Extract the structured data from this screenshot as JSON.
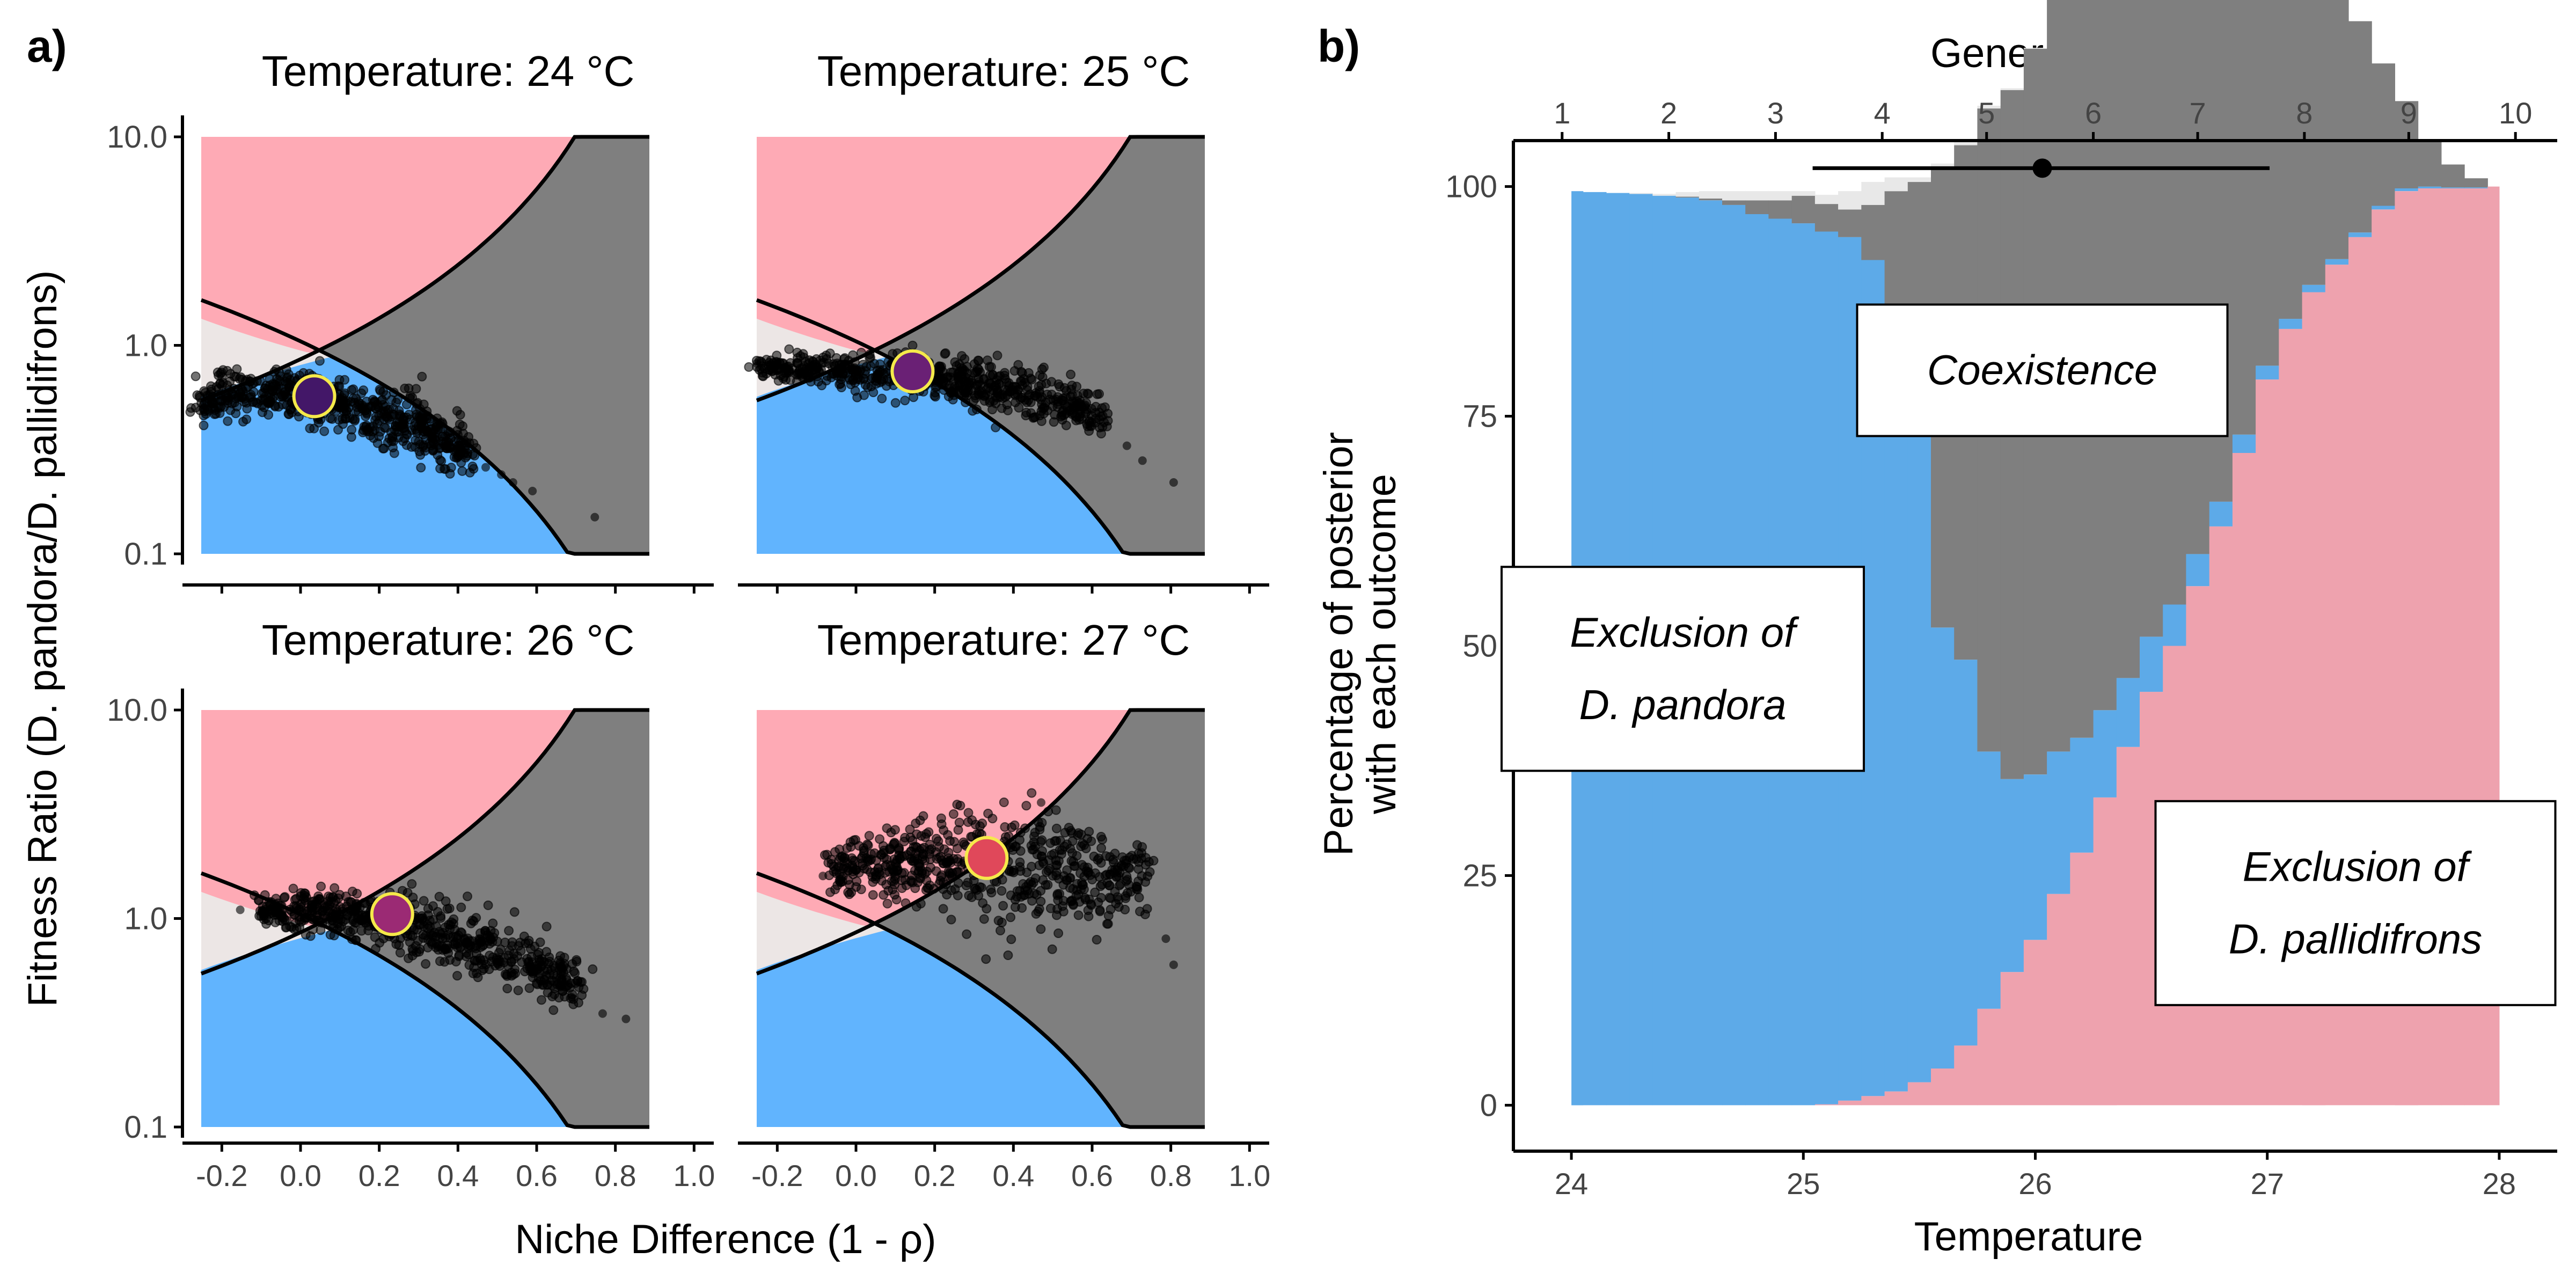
{
  "panel_a": {
    "label": "a)",
    "ylabel": "Fitness Ratio (D. pandora/D. pallidifrons)",
    "xlabel": "Niche Difference (1 - ρ)",
    "colors": {
      "pink": "#feaab5",
      "gray": "#7f7f7f",
      "light": "#ece6e5",
      "blue": "#61b4fe",
      "points": "#000000"
    },
    "xlim": [
      -0.3,
      1.05
    ],
    "xticks": [
      -0.2,
      0.0,
      0.2,
      0.4,
      0.6,
      0.8,
      1.0
    ],
    "xtick_labels": [
      "-0.2",
      "0.0",
      "0.2",
      "0.4",
      "0.6",
      "0.8",
      "1.0"
    ],
    "ylim": [
      0.1,
      10.0
    ],
    "yscale": "log",
    "yticks": [
      0.1,
      1.0,
      10.0
    ],
    "ytick_labels": [
      "0.1",
      "1.0",
      "10.0"
    ],
    "facets": [
      {
        "title": "Temperature: 24 °C",
        "mean": [
          0.04,
          0.57
        ],
        "mean_color": "#431768",
        "cloud": [
          {
            "x": [
              -0.25,
              -0.05,
              0.1,
              0.2,
              0.3,
              0.38,
              0.45
            ],
            "lo": [
              0.45,
              0.46,
              0.38,
              0.33,
              0.28,
              0.25,
              0.24
            ],
            "hi": [
              0.72,
              0.78,
              0.72,
              0.65,
              0.55,
              0.45,
              0.38
            ]
          }
        ],
        "stragglers": [
          [
            0.55,
            0.22
          ],
          [
            0.6,
            0.2
          ],
          [
            0.52,
            0.24
          ],
          [
            0.76,
            0.15
          ],
          [
            0.48,
            0.26
          ]
        ]
      },
      {
        "title": "Temperature: 25 °C",
        "mean": [
          0.15,
          0.75
        ],
        "mean_color": "#6a2075",
        "cloud": [
          {
            "x": [
              -0.25,
              -0.05,
              0.1,
              0.25,
              0.4,
              0.55,
              0.65
            ],
            "lo": [
              0.68,
              0.63,
              0.58,
              0.52,
              0.45,
              0.4,
              0.37
            ],
            "hi": [
              0.92,
              0.95,
              0.92,
              0.88,
              0.8,
              0.66,
              0.55
            ]
          }
        ],
        "stragglers": [
          [
            0.7,
            0.33
          ],
          [
            0.82,
            0.22
          ],
          [
            0.74,
            0.28
          ],
          [
            -0.25,
            0.82
          ]
        ]
      },
      {
        "title": "Temperature: 26 °C",
        "mean": [
          0.24,
          1.05
        ],
        "mean_color": "#9b2a74",
        "cloud": [
          {
            "x": [
              -0.1,
              0.05,
              0.2,
              0.35,
              0.5,
              0.65,
              0.72
            ],
            "lo": [
              0.95,
              0.85,
              0.75,
              0.6,
              0.48,
              0.4,
              0.38
            ],
            "hi": [
              1.3,
              1.4,
              1.35,
              1.2,
              1.0,
              0.72,
              0.6
            ]
          }
        ],
        "stragglers": [
          [
            0.78,
            0.35
          ],
          [
            0.84,
            0.33
          ],
          [
            -0.15,
            1.1
          ],
          [
            0.7,
            0.42
          ]
        ]
      },
      {
        "title": "Temperature: 27 °C",
        "mean": [
          0.34,
          1.95
        ],
        "mean_color": "#e0485a",
        "cloud": [
          {
            "x": [
              -0.05,
              0.1,
              0.25,
              0.4,
              0.55,
              0.7,
              0.75
            ],
            "lo": [
              1.45,
              1.15,
              1.0,
              0.95,
              0.95,
              1.0,
              1.1
            ],
            "hi": [
              2.2,
              2.8,
              3.2,
              3.2,
              2.9,
              2.4,
              2.1
            ]
          }
        ],
        "stragglers": [
          [
            0.82,
            0.6
          ],
          [
            0.8,
            0.8
          ],
          [
            0.48,
            3.6
          ],
          [
            -0.08,
            1.6
          ]
        ]
      }
    ]
  },
  "panel_b": {
    "label": "b)",
    "xlabel": "Temperature",
    "ylabel_lines": [
      "Percentage of posterior",
      "with each outcome"
    ],
    "top_axis_title": "Generation",
    "xlim": [
      23.75,
      28.25
    ],
    "ylim": [
      -5,
      105
    ],
    "xticks": [
      24,
      25,
      26,
      27,
      28
    ],
    "xtick_labels": [
      "24",
      "25",
      "26",
      "27",
      "28"
    ],
    "yticks": [
      0,
      25,
      50,
      75,
      100
    ],
    "ytick_labels": [
      "0",
      "25",
      "50",
      "75",
      "100"
    ],
    "generation_ticks": [
      {
        "label": "1",
        "temp": 23.96
      },
      {
        "label": "2",
        "temp": 24.42
      },
      {
        "label": "3",
        "temp": 24.88
      },
      {
        "label": "4",
        "temp": 25.34
      },
      {
        "label": "5",
        "temp": 25.79
      },
      {
        "label": "6",
        "temp": 26.25
      },
      {
        "label": "7",
        "temp": 26.7
      },
      {
        "label": "8",
        "temp": 27.16
      },
      {
        "label": "9",
        "temp": 27.61
      },
      {
        "label": "10",
        "temp": 28.07
      }
    ],
    "interval": {
      "temp_mean": 26.03,
      "temp_low": 25.04,
      "temp_high": 27.01,
      "y": 102
    },
    "annotations": [
      {
        "text": "Coexistence",
        "lines": [
          "Coexistence"
        ],
        "temp": 26.03,
        "y": 80
      },
      {
        "text": "Exclusion of D. pandora",
        "lines": [
          "Exclusion of",
          "D. pandora"
        ],
        "temp": 24.48,
        "y": 47.5
      },
      {
        "text": "Exclusion of D. pallidifrons",
        "lines": [
          "Exclusion of",
          "D. pallidifrons"
        ],
        "temp": 27.38,
        "y": 22
      }
    ],
    "colors": {
      "blue": "#5daae8",
      "gray": "#7f7f7f",
      "light": "#e8e8e8",
      "pink": "#eea2ae"
    },
    "chart_data": {
      "type": "area",
      "x": [
        24.0,
        24.1,
        24.2,
        24.3,
        24.4,
        24.5,
        24.6,
        24.7,
        24.8,
        24.9,
        25.0,
        25.1,
        25.2,
        25.3,
        25.4,
        25.5,
        25.6,
        25.7,
        25.8,
        25.9,
        26.0,
        26.1,
        26.2,
        26.3,
        26.4,
        26.5,
        26.6,
        26.7,
        26.8,
        26.9,
        27.0,
        27.1,
        27.2,
        27.3,
        27.4,
        27.5,
        27.6,
        27.7,
        27.8,
        27.9,
        28.0
      ],
      "series": [
        {
          "name": "Exclusion of D. pandora",
          "values": [
            99.5,
            99.4,
            99.3,
            99.2,
            99.0,
            98.8,
            98.5,
            98.0,
            97.0,
            96.5,
            96.0,
            95.0,
            94.0,
            91.0,
            82.0,
            71.0,
            48.0,
            42.0,
            28.0,
            21.0,
            18.0,
            15.5,
            12.5,
            9.5,
            7.5,
            6.0,
            4.5,
            3.5,
            2.7,
            2.0,
            1.5,
            1.1,
            0.8,
            0.6,
            0.5,
            0.4,
            0.3,
            0.2,
            0.1,
            0.1,
            0.0
          ]
        },
        {
          "name": "Coexistence",
          "values": [
            0.0,
            0.0,
            0.0,
            0.0,
            0.0,
            0.1,
            0.2,
            0.5,
            1.5,
            2.0,
            3.0,
            3.0,
            3.0,
            6.0,
            16.0,
            27.0,
            50.0,
            56.0,
            70.0,
            75.0,
            79.0,
            82.0,
            84.0,
            85.5,
            85.0,
            83.0,
            80.0,
            75.0,
            69.0,
            61.0,
            53.0,
            45.5,
            38.0,
            30.0,
            23.0,
            15.5,
            9.5,
            5.0,
            2.5,
            1.0,
            0.0
          ]
        },
        {
          "name": "Uncertain",
          "values": [
            0.0,
            0.0,
            0.0,
            0.1,
            0.2,
            0.5,
            0.8,
            1.0,
            1.0,
            1.0,
            0.5,
            1.0,
            2.0,
            2.5,
            1.5,
            0.5,
            0.5,
            0.3,
            0.3,
            0.2,
            0.1,
            0.1,
            0.0,
            0.0,
            0.0,
            0.0,
            0.0,
            0.0,
            0.0,
            0.0,
            0.0,
            0.0,
            0.0,
            0.0,
            0.0,
            0.0,
            0.0,
            0.0,
            0.0,
            0.0,
            0.0
          ]
        },
        {
          "name": "Exclusion of D. pallidifrons",
          "values": [
            0.0,
            0.0,
            0.0,
            0.0,
            0.0,
            0.0,
            0.0,
            0.0,
            0.0,
            0.0,
            0.0,
            0.1,
            0.5,
            1.0,
            1.5,
            2.5,
            4.0,
            6.5,
            10.5,
            14.5,
            18.0,
            23.0,
            27.5,
            33.5,
            39.0,
            45.0,
            50.0,
            56.5,
            63.0,
            71.0,
            79.0,
            84.5,
            88.5,
            91.5,
            94.5,
            97.5,
            99.5,
            99.8,
            99.8,
            99.8,
            100.0
          ]
        }
      ]
    }
  }
}
